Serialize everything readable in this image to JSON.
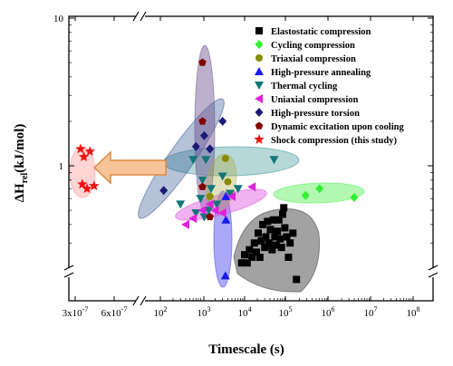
{
  "chart_data": {
    "type": "scatter",
    "xlabel": "Timescale (s)",
    "ylabel_main": "ΔH",
    "ylabel_sub": "rel",
    "ylabel_unit": "(kJ/mol)",
    "x_scale": "log-with-axis-break",
    "y_scale": "log-with-axis-break",
    "x_tick_labels": [
      "3x10",
      "6x10",
      "10",
      "10",
      "10",
      "10",
      "10",
      "10",
      "10"
    ],
    "x_tick_exponents": [
      "-7",
      "-7",
      "2",
      "3",
      "4",
      "5",
      "6",
      "7",
      "8"
    ],
    "y_tick_labels": [
      "1",
      "10"
    ],
    "legend_position": "top-right",
    "series": [
      {
        "name": "Elastostatic compression",
        "color": "#000000",
        "marker": "square",
        "points": [
          [
            8500,
            0.22
          ],
          [
            10000,
            0.25
          ],
          [
            11500,
            0.22
          ],
          [
            13000,
            0.27
          ],
          [
            15000,
            0.24
          ],
          [
            17000,
            0.3
          ],
          [
            19000,
            0.26
          ],
          [
            21000,
            0.35
          ],
          [
            23000,
            0.24
          ],
          [
            25000,
            0.31
          ],
          [
            27000,
            0.4
          ],
          [
            30000,
            0.28
          ],
          [
            32000,
            0.33
          ],
          [
            35000,
            0.42
          ],
          [
            38000,
            0.3
          ],
          [
            41000,
            0.37
          ],
          [
            45000,
            0.27
          ],
          [
            48000,
            0.43
          ],
          [
            52000,
            0.33
          ],
          [
            56000,
            0.29
          ],
          [
            60000,
            0.36
          ],
          [
            65000,
            0.43
          ],
          [
            70000,
            0.32
          ],
          [
            75000,
            0.28
          ],
          [
            80000,
            0.47
          ],
          [
            85000,
            0.52
          ],
          [
            90000,
            0.38
          ],
          [
            100000,
            0.33
          ],
          [
            110000,
            0.24
          ],
          [
            120000,
            0.3
          ],
          [
            140000,
            0.35
          ],
          [
            170000,
            0.17
          ]
        ]
      },
      {
        "name": "Cycling compression",
        "color": "#33ee33",
        "marker": "diamond",
        "points": [
          [
            280000,
            0.63
          ],
          [
            600000,
            0.7
          ],
          [
            4000000,
            0.61
          ]
        ]
      },
      {
        "name": "Triaxial compression",
        "color": "#8b8b00",
        "marker": "circle",
        "points": [
          [
            1500,
            0.62
          ],
          [
            3500,
            1.12
          ],
          [
            4000,
            0.78
          ]
        ]
      },
      {
        "name": "High-pressure annealing",
        "color": "#1a1aee",
        "marker": "triangle-up",
        "points": [
          [
            3500,
            0.18
          ],
          [
            3600,
            0.43
          ],
          [
            3600,
            0.62
          ]
        ]
      },
      {
        "name": "Thermal cycling",
        "color": "#117777",
        "marker": "triangle-down",
        "points": [
          [
            300,
            0.55
          ],
          [
            600,
            1.1
          ],
          [
            700,
            0.48
          ],
          [
            900,
            0.6
          ],
          [
            1000,
            0.8
          ],
          [
            1100,
            0.45
          ],
          [
            1200,
            1.1
          ],
          [
            1400,
            0.5
          ],
          [
            1600,
            0.7
          ],
          [
            2200,
            0.55
          ],
          [
            3000,
            0.85
          ],
          [
            4500,
            0.65
          ],
          [
            7000,
            0.7
          ],
          [
            50000,
            1.1
          ]
        ]
      },
      {
        "name": "Uniaxial compression",
        "color": "#dd22dd",
        "marker": "triangle-left",
        "points": [
          [
            400,
            0.4
          ],
          [
            600,
            0.44
          ],
          [
            1000,
            0.5
          ],
          [
            1500,
            0.55
          ],
          [
            2000,
            0.5
          ],
          [
            3000,
            0.48
          ],
          [
            5000,
            0.62
          ],
          [
            15000,
            0.72
          ]
        ]
      },
      {
        "name": "High-pressure torsion",
        "color": "#1a1a77",
        "marker": "diamond",
        "points": [
          [
            120,
            0.68
          ],
          [
            700,
            1.35
          ],
          [
            1100,
            1.6
          ],
          [
            1500,
            1.3
          ],
          [
            3000,
            2.0
          ]
        ]
      },
      {
        "name": "Dynamic excitation upon cooling",
        "color": "#800000",
        "marker": "pentagon",
        "points": [
          [
            1000,
            0.72
          ],
          [
            1000,
            2.0
          ],
          [
            1000,
            5.0
          ],
          [
            1500,
            0.45
          ]
        ]
      },
      {
        "name": "Shock compression (this study)",
        "color": "#ee1111",
        "marker": "star",
        "points": [
          [
            3.3e-07,
            1.3
          ],
          [
            3.4e-07,
            0.75
          ],
          [
            3.5e-07,
            1.15
          ],
          [
            3.7e-07,
            0.7
          ],
          [
            3.9e-07,
            1.25
          ],
          [
            4.2e-07,
            0.73
          ]
        ]
      }
    ]
  }
}
